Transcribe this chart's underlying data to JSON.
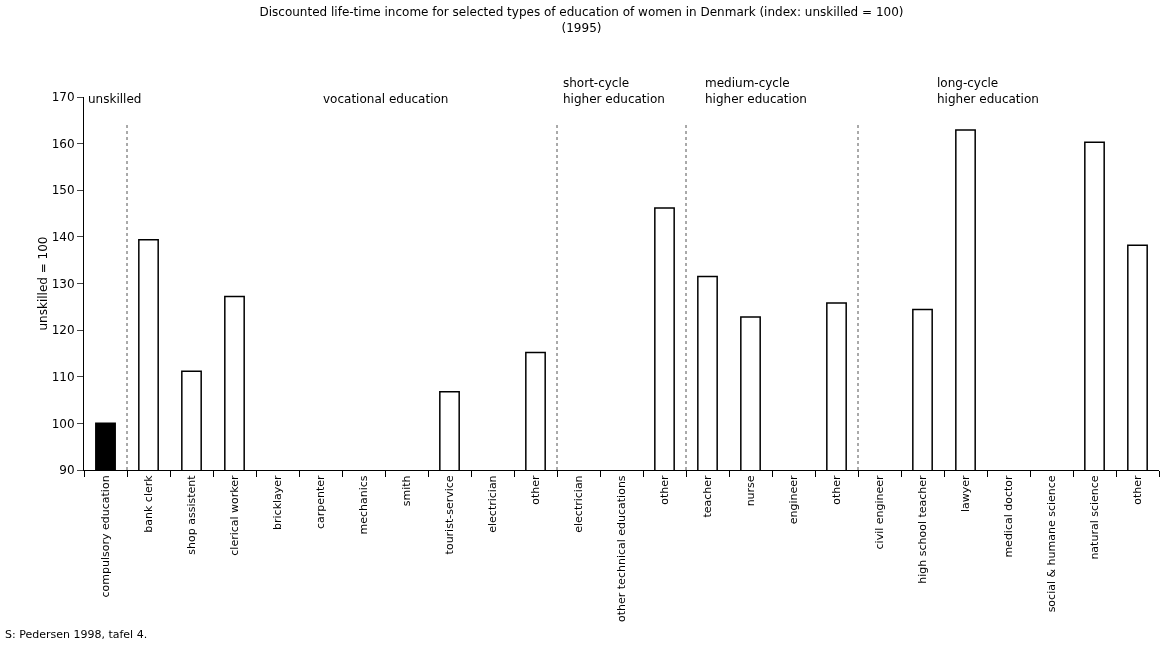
{
  "chart_data": {
    "type": "bar",
    "title": "Discounted life-time income for selected types of education of women in Denmark (index: unskilled = 100)\n(1995)",
    "ylabel": "unskilled = 100",
    "categories": [
      "compulsory education",
      "bank clerk",
      "shop assistent",
      "clerical worker",
      "bricklayer",
      "carpenter",
      "mechanics",
      "smith",
      "tourist-service",
      "electrician",
      "other",
      "electrician",
      "other technical educations",
      "other",
      "teacher",
      "nurse",
      "engineer",
      "other",
      "civil engineer",
      "high school teacher",
      "lawyer",
      "medical doctor",
      "social & humane science",
      "natural science",
      "other"
    ],
    "values": [
      100,
      139.4,
      111.2,
      127.2,
      null,
      null,
      null,
      null,
      106.8,
      null,
      115.2,
      null,
      null,
      146.2,
      131.5,
      122.8,
      null,
      125.8,
      null,
      124.4,
      162.9,
      null,
      null,
      160.3,
      138.2
    ],
    "colors": [
      "#000000",
      "#ffffff",
      "#ffffff",
      "#ffffff",
      "#ffffff",
      "#ffffff",
      "#ffffff",
      "#ffffff",
      "#ffffff",
      "#ffffff",
      "#ffffff",
      "#ffffff",
      "#ffffff",
      "#ffffff",
      "#ffffff",
      "#ffffff",
      "#ffffff",
      "#ffffff",
      "#ffffff",
      "#ffffff",
      "#ffffff",
      "#ffffff",
      "#ffffff",
      "#ffffff",
      "#ffffff"
    ],
    "ylim": [
      90,
      170
    ],
    "yticks": [
      90,
      100,
      110,
      120,
      130,
      140,
      150,
      160,
      170
    ],
    "grid": false,
    "annotations": [
      "unskilled",
      "vocational education",
      "short-cycle\nhigher education",
      "medium-cycle\nhigher education",
      "long-cycle\nhigher education",
      "S: Pedersen 1998, tafel 4."
    ]
  }
}
